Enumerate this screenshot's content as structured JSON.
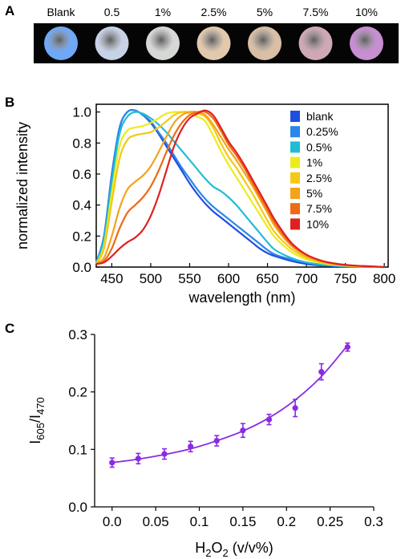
{
  "panel_a": {
    "letter": "A",
    "samples": [
      {
        "label": "Blank",
        "color": "#6fa8f5"
      },
      {
        "label": "0.5",
        "color": "#c7d2e6"
      },
      {
        "label": "1%",
        "color": "#d6d8d6"
      },
      {
        "label": "2.5%",
        "color": "#e2c9ad"
      },
      {
        "label": "5%",
        "color": "#d8bfa6"
      },
      {
        "label": "7.5%",
        "color": "#cfa8b6"
      },
      {
        "label": "10%",
        "color": "#c78ed2"
      }
    ]
  },
  "chart_data": [
    {
      "panel": "B",
      "type": "line",
      "xlabel": "wavelength (nm)",
      "ylabel": "normalized intensity",
      "xlim": [
        430,
        805
      ],
      "ylim": [
        0,
        1.05
      ],
      "xticks": [
        450,
        500,
        550,
        600,
        650,
        700,
        750,
        800
      ],
      "yticks": [
        0.0,
        0.2,
        0.4,
        0.6,
        0.8,
        1.0
      ],
      "legend_position": "right",
      "x": [
        430,
        440,
        450,
        460,
        470,
        480,
        490,
        500,
        510,
        520,
        530,
        540,
        550,
        560,
        570,
        580,
        590,
        600,
        610,
        620,
        630,
        640,
        650,
        660,
        680,
        700,
        720,
        740,
        760,
        780,
        800
      ],
      "series": [
        {
          "name": "blank",
          "color": "#1f4fe0",
          "values": [
            0.03,
            0.2,
            0.6,
            0.9,
            1.0,
            1.01,
            0.98,
            0.93,
            0.86,
            0.78,
            0.7,
            0.62,
            0.54,
            0.47,
            0.41,
            0.36,
            0.32,
            0.28,
            0.24,
            0.2,
            0.16,
            0.12,
            0.09,
            0.07,
            0.04,
            0.02,
            0.01,
            0.005,
            0.003,
            0.002,
            0.0
          ]
        },
        {
          "name": "0.25%",
          "color": "#2c86e8",
          "values": [
            0.03,
            0.2,
            0.6,
            0.9,
            1.0,
            1.01,
            0.98,
            0.94,
            0.87,
            0.8,
            0.72,
            0.64,
            0.57,
            0.5,
            0.44,
            0.39,
            0.35,
            0.31,
            0.27,
            0.23,
            0.19,
            0.15,
            0.11,
            0.08,
            0.05,
            0.03,
            0.015,
            0.008,
            0.004,
            0.002,
            0.0
          ]
        },
        {
          "name": "0.5%",
          "color": "#22bcd6",
          "values": [
            0.03,
            0.18,
            0.55,
            0.86,
            0.97,
            1.0,
            0.99,
            0.96,
            0.92,
            0.87,
            0.81,
            0.75,
            0.69,
            0.63,
            0.57,
            0.52,
            0.49,
            0.45,
            0.4,
            0.34,
            0.28,
            0.22,
            0.16,
            0.11,
            0.06,
            0.03,
            0.015,
            0.008,
            0.004,
            0.002,
            0.0
          ]
        },
        {
          "name": "1%",
          "color": "#ecec1c",
          "values": [
            0.02,
            0.14,
            0.48,
            0.78,
            0.88,
            0.9,
            0.91,
            0.93,
            0.96,
            0.99,
            1.0,
            1.0,
            0.99,
            0.97,
            0.94,
            0.85,
            0.75,
            0.66,
            0.58,
            0.5,
            0.42,
            0.34,
            0.26,
            0.19,
            0.1,
            0.05,
            0.025,
            0.012,
            0.006,
            0.003,
            0.0
          ]
        },
        {
          "name": "2.5%",
          "color": "#f5c814",
          "values": [
            0.02,
            0.12,
            0.42,
            0.7,
            0.82,
            0.85,
            0.86,
            0.87,
            0.9,
            0.94,
            0.98,
            1.0,
            1.0,
            0.99,
            0.97,
            0.9,
            0.8,
            0.71,
            0.64,
            0.56,
            0.48,
            0.39,
            0.3,
            0.22,
            0.12,
            0.06,
            0.03,
            0.015,
            0.007,
            0.003,
            0.0
          ]
        },
        {
          "name": "5%",
          "color": "#f4a21c",
          "values": [
            0.02,
            0.06,
            0.2,
            0.38,
            0.5,
            0.55,
            0.59,
            0.65,
            0.74,
            0.84,
            0.93,
            0.98,
            1.0,
            1.0,
            0.98,
            0.92,
            0.84,
            0.76,
            0.69,
            0.61,
            0.53,
            0.44,
            0.35,
            0.26,
            0.14,
            0.07,
            0.035,
            0.017,
            0.008,
            0.004,
            0.0
          ]
        },
        {
          "name": "7.5%",
          "color": "#ee6a14",
          "values": [
            0.02,
            0.04,
            0.12,
            0.25,
            0.35,
            0.4,
            0.45,
            0.52,
            0.62,
            0.74,
            0.85,
            0.93,
            0.98,
            1.0,
            1.0,
            0.96,
            0.88,
            0.79,
            0.72,
            0.64,
            0.55,
            0.46,
            0.37,
            0.28,
            0.15,
            0.08,
            0.04,
            0.02,
            0.01,
            0.005,
            0.0
          ]
        },
        {
          "name": "10%",
          "color": "#e02020",
          "values": [
            0.02,
            0.03,
            0.07,
            0.12,
            0.16,
            0.19,
            0.24,
            0.33,
            0.46,
            0.62,
            0.78,
            0.89,
            0.96,
            0.99,
            1.01,
            0.98,
            0.9,
            0.81,
            0.74,
            0.66,
            0.57,
            0.48,
            0.39,
            0.3,
            0.16,
            0.08,
            0.04,
            0.02,
            0.01,
            0.005,
            0.0
          ]
        }
      ]
    },
    {
      "panel": "C",
      "type": "scatter",
      "xlabel_main": "H",
      "xlabel_sub": "2",
      "xlabel_mid": "O",
      "xlabel_sub2": "2",
      "xlabel_tail": " (v/v%)",
      "ylabel_main1": "I",
      "ylabel_sub1": "605",
      "ylabel_mid": "/I",
      "ylabel_sub2": "470",
      "xlim": [
        -0.02,
        0.3
      ],
      "ylim": [
        0.0,
        0.3
      ],
      "xticks": [
        "0.0",
        "0.05",
        "0.1",
        "0.15",
        "0.2",
        "0.25",
        "0.3"
      ],
      "yticks": [
        "0.0",
        "0.1",
        "0.2",
        "0.3"
      ],
      "color": "#8a2be2",
      "points": [
        {
          "x": 0.0,
          "y": 0.077,
          "err": 0.008
        },
        {
          "x": 0.03,
          "y": 0.084,
          "err": 0.009
        },
        {
          "x": 0.06,
          "y": 0.092,
          "err": 0.009
        },
        {
          "x": 0.09,
          "y": 0.105,
          "err": 0.009
        },
        {
          "x": 0.12,
          "y": 0.115,
          "err": 0.009
        },
        {
          "x": 0.15,
          "y": 0.133,
          "err": 0.012
        },
        {
          "x": 0.18,
          "y": 0.152,
          "err": 0.009
        },
        {
          "x": 0.21,
          "y": 0.172,
          "err": 0.015
        },
        {
          "x": 0.24,
          "y": 0.235,
          "err": 0.014
        },
        {
          "x": 0.27,
          "y": 0.278,
          "err": 0.007
        }
      ],
      "fit": {
        "x": [
          0.0,
          0.03,
          0.06,
          0.09,
          0.12,
          0.15,
          0.18,
          0.21,
          0.24,
          0.27
        ],
        "y": [
          0.077,
          0.083,
          0.091,
          0.101,
          0.115,
          0.132,
          0.155,
          0.186,
          0.227,
          0.281
        ]
      }
    }
  ]
}
